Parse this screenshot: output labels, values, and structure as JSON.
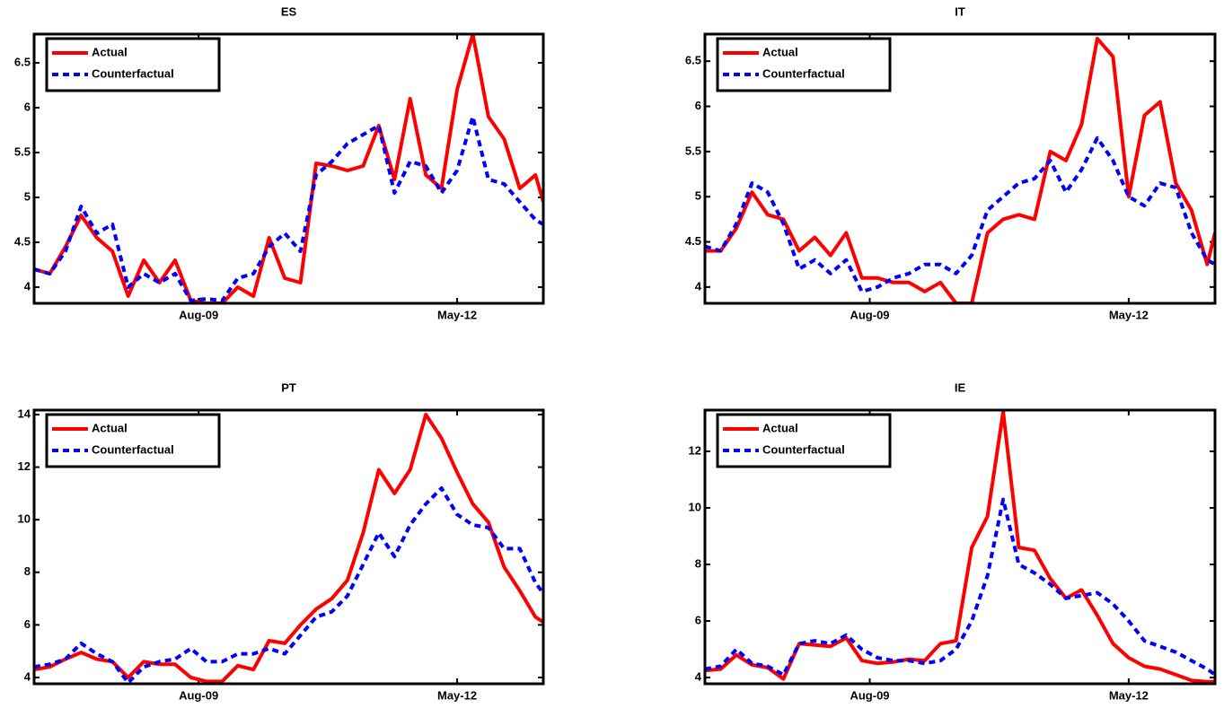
{
  "chart_data": [
    {
      "type": "line",
      "title": "ES",
      "x": [
        0,
        2,
        4,
        6,
        8,
        10,
        12,
        14,
        16,
        18,
        20,
        22,
        24,
        26,
        28,
        30,
        32,
        34,
        36,
        38,
        40,
        42,
        44,
        46,
        48,
        50,
        52,
        54,
        56,
        58,
        60,
        62,
        64,
        65
      ],
      "xlim": [
        0,
        65
      ],
      "xticks": [
        {
          "value": 21,
          "label": "Aug-09"
        },
        {
          "value": 54,
          "label": "May-12"
        }
      ],
      "ylim": [
        3.82,
        6.82
      ],
      "yticks": [
        4,
        4.5,
        5,
        5.5,
        6,
        6.5
      ],
      "legend": "upper-left",
      "series": [
        {
          "name": "Actual",
          "color": "#ff0000",
          "style": "solid",
          "values": [
            4.2,
            4.15,
            4.45,
            4.8,
            4.55,
            4.4,
            3.9,
            4.3,
            4.05,
            4.3,
            3.85,
            3.82,
            3.82,
            4.0,
            3.9,
            4.55,
            4.1,
            4.05,
            5.38,
            5.35,
            5.3,
            5.35,
            5.8,
            5.2,
            6.1,
            5.25,
            5.1,
            6.2,
            6.82,
            5.9,
            5.65,
            5.1,
            5.25,
            4.95
          ]
        },
        {
          "name": "Counterfactual",
          "color": "#0000ff",
          "style": "dashed",
          "values": [
            4.2,
            4.15,
            4.4,
            4.9,
            4.6,
            4.7,
            4.0,
            4.15,
            4.05,
            4.15,
            3.85,
            3.87,
            3.85,
            4.1,
            4.15,
            4.45,
            4.6,
            4.4,
            5.25,
            5.4,
            5.6,
            5.7,
            5.8,
            5.05,
            5.4,
            5.35,
            5.05,
            5.3,
            5.9,
            5.2,
            5.15,
            4.95,
            4.75,
            4.7
          ]
        }
      ]
    },
    {
      "type": "line",
      "title": "IT",
      "x": [
        0,
        2,
        4,
        6,
        8,
        10,
        12,
        14,
        16,
        18,
        20,
        22,
        24,
        26,
        28,
        30,
        32,
        34,
        36,
        38,
        40,
        42,
        44,
        46,
        48,
        50,
        52,
        54,
        56,
        58,
        60,
        62,
        64,
        65
      ],
      "xlim": [
        0,
        65
      ],
      "xticks": [
        {
          "value": 21,
          "label": "Aug-09"
        },
        {
          "value": 54,
          "label": "May-12"
        }
      ],
      "ylim": [
        3.82,
        6.8
      ],
      "yticks": [
        4,
        4.5,
        5,
        5.5,
        6,
        6.5
      ],
      "legend": "upper-left",
      "series": [
        {
          "name": "Actual",
          "color": "#ff0000",
          "style": "solid",
          "values": [
            4.4,
            4.4,
            4.65,
            5.05,
            4.8,
            4.75,
            4.4,
            4.55,
            4.35,
            4.6,
            4.1,
            4.1,
            4.05,
            4.05,
            3.95,
            4.05,
            3.82,
            3.82,
            4.6,
            4.75,
            4.8,
            4.75,
            5.5,
            5.4,
            5.8,
            6.75,
            6.55,
            5.0,
            5.9,
            6.05,
            5.15,
            4.85,
            4.25,
            4.6
          ]
        },
        {
          "name": "Counterfactual",
          "color": "#0000ff",
          "style": "dashed",
          "values": [
            4.45,
            4.4,
            4.7,
            5.15,
            5.05,
            4.7,
            4.2,
            4.3,
            4.15,
            4.3,
            3.95,
            4.0,
            4.1,
            4.15,
            4.25,
            4.25,
            4.15,
            4.35,
            4.85,
            5.0,
            5.15,
            5.2,
            5.4,
            5.05,
            5.3,
            5.65,
            5.4,
            5.0,
            4.9,
            5.15,
            5.1,
            4.6,
            4.3,
            4.25
          ]
        }
      ]
    },
    {
      "type": "line",
      "title": "PT",
      "x": [
        0,
        2,
        4,
        6,
        8,
        10,
        12,
        14,
        16,
        18,
        20,
        22,
        24,
        26,
        28,
        30,
        32,
        34,
        36,
        38,
        40,
        42,
        44,
        46,
        48,
        50,
        52,
        54,
        56,
        58,
        60,
        62,
        64,
        65
      ],
      "xlim": [
        0,
        65
      ],
      "xticks": [
        {
          "value": 21,
          "label": "Aug-09"
        },
        {
          "value": 54,
          "label": "May-12"
        }
      ],
      "ylim": [
        3.76,
        14.17
      ],
      "yticks": [
        4,
        6,
        8,
        10,
        12,
        14
      ],
      "legend": "upper-left",
      "series": [
        {
          "name": "Actual",
          "color": "#ff0000",
          "style": "solid",
          "values": [
            4.3,
            4.4,
            4.7,
            4.95,
            4.7,
            4.6,
            4.0,
            4.6,
            4.5,
            4.5,
            4.0,
            3.85,
            3.85,
            4.45,
            4.3,
            5.4,
            5.3,
            6.0,
            6.6,
            7.0,
            7.7,
            9.5,
            11.9,
            11.0,
            11.9,
            14.0,
            13.1,
            11.8,
            10.6,
            9.9,
            8.2,
            7.3,
            6.3,
            6.1
          ]
        },
        {
          "name": "Counterfactual",
          "color": "#0000ff",
          "style": "dashed",
          "values": [
            4.4,
            4.5,
            4.7,
            5.3,
            4.9,
            4.6,
            3.8,
            4.4,
            4.6,
            4.7,
            5.1,
            4.6,
            4.6,
            4.9,
            4.9,
            5.1,
            4.9,
            5.6,
            6.3,
            6.5,
            7.1,
            8.3,
            9.5,
            8.6,
            9.8,
            10.6,
            11.2,
            10.2,
            9.8,
            9.7,
            8.9,
            8.9,
            7.6,
            7.2
          ]
        }
      ]
    },
    {
      "type": "line",
      "title": "IE",
      "x": [
        0,
        2,
        4,
        6,
        8,
        10,
        12,
        14,
        16,
        18,
        20,
        22,
        24,
        26,
        28,
        30,
        32,
        34,
        36,
        38,
        40,
        42,
        44,
        46,
        48,
        50,
        52,
        54,
        56,
        58,
        60,
        62,
        64,
        65
      ],
      "xlim": [
        0,
        65
      ],
      "xticks": [
        {
          "value": 21,
          "label": "Aug-09"
        },
        {
          "value": 54,
          "label": "May-12"
        }
      ],
      "ylim": [
        3.78,
        13.46
      ],
      "yticks": [
        4,
        6,
        8,
        10,
        12
      ],
      "legend": "upper-left",
      "series": [
        {
          "name": "Actual",
          "color": "#ff0000",
          "style": "solid",
          "values": [
            4.25,
            4.3,
            4.8,
            4.45,
            4.35,
            3.95,
            5.2,
            5.15,
            5.1,
            5.4,
            4.6,
            4.5,
            4.55,
            4.65,
            4.6,
            5.2,
            5.3,
            8.6,
            9.7,
            13.4,
            8.6,
            8.5,
            7.5,
            6.8,
            7.1,
            6.2,
            5.2,
            4.7,
            4.4,
            4.3,
            4.1,
            3.9,
            3.85,
            3.85
          ]
        },
        {
          "name": "Counterfactual",
          "color": "#0000ff",
          "style": "dashed",
          "values": [
            4.3,
            4.4,
            5.0,
            4.5,
            4.4,
            4.1,
            5.2,
            5.3,
            5.2,
            5.5,
            5.0,
            4.7,
            4.6,
            4.6,
            4.5,
            4.6,
            5.0,
            6.0,
            7.6,
            10.3,
            8.0,
            7.7,
            7.3,
            6.8,
            6.9,
            7.0,
            6.6,
            6.0,
            5.3,
            5.1,
            4.9,
            4.6,
            4.3,
            4.1
          ]
        }
      ]
    }
  ]
}
